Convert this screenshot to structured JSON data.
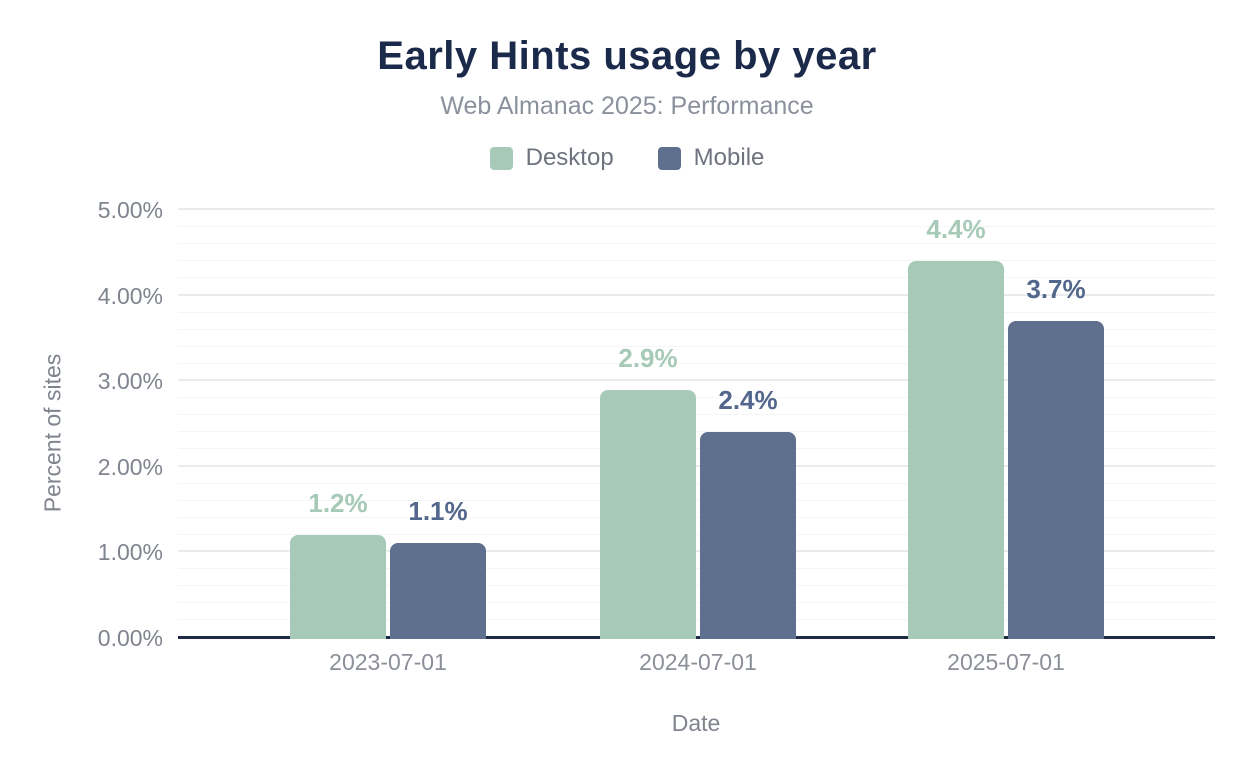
{
  "chart_data": {
    "type": "bar",
    "title": "Early Hints usage by year",
    "subtitle": "Web Almanac 2025: Performance",
    "xlabel": "Date",
    "ylabel": "Percent of sites",
    "categories": [
      "2023-07-01",
      "2024-07-01",
      "2025-07-01"
    ],
    "series": [
      {
        "name": "Desktop",
        "color": "#a7cab8",
        "label_color": "#a7cab8",
        "values": [
          1.2,
          2.9,
          4.4
        ],
        "labels": [
          "1.2%",
          "2.9%",
          "4.4%"
        ]
      },
      {
        "name": "Mobile",
        "color": "#5e708e",
        "label_color": "#53678c",
        "values": [
          1.1,
          2.4,
          3.7
        ],
        "labels": [
          "1.1%",
          "2.4%",
          "3.7%"
        ]
      }
    ],
    "y_axis": {
      "min": 0,
      "max": 5,
      "major_step": 1,
      "minor_step": 0.2,
      "tick_labels": [
        "0.00%",
        "1.00%",
        "2.00%",
        "3.00%",
        "4.00%",
        "5.00%"
      ]
    },
    "legend_position": "top",
    "grid": true,
    "axis_line_color": "#1e2a44"
  }
}
